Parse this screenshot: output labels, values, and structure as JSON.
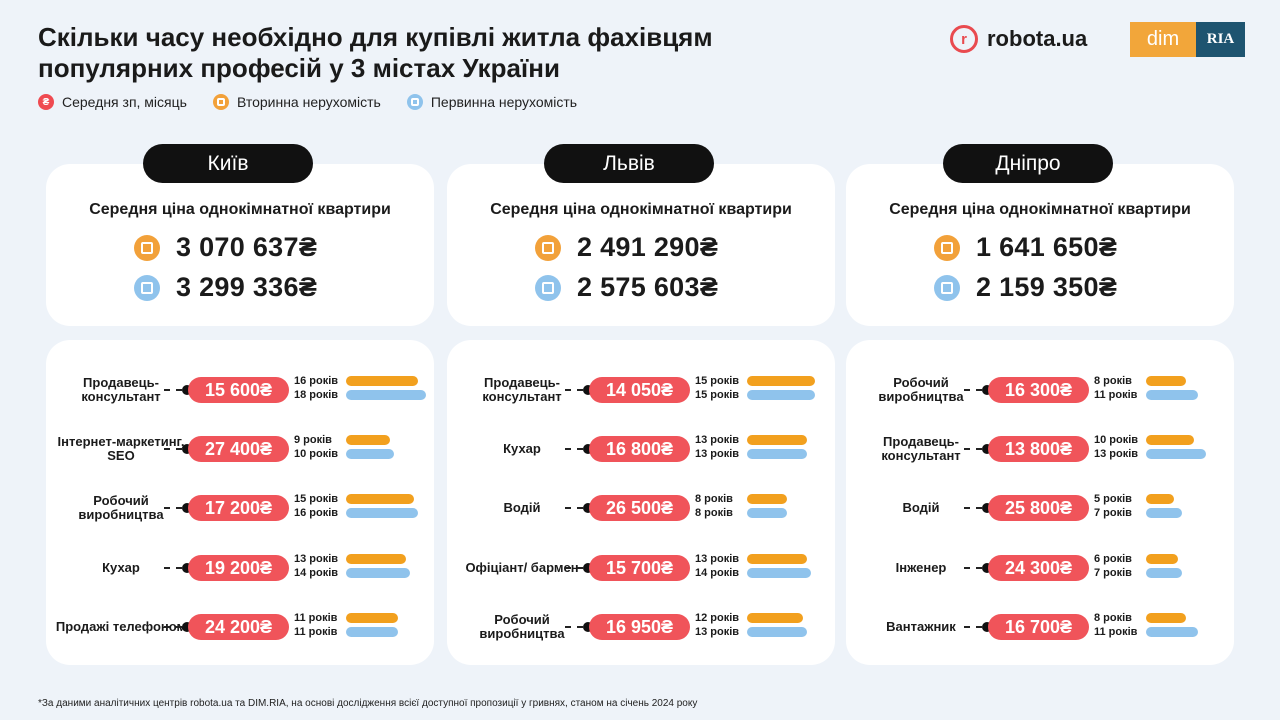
{
  "title_line1": "Скільки часу необхідно для купівлі житла фахівцям",
  "title_line2": "популярних професій у 3 містах України",
  "legend": {
    "salary": "Середня зп, місяць",
    "secondary": "Вторинна нерухомість",
    "primary": "Первинна нерухомість"
  },
  "logos": {
    "robota": "robota.ua",
    "dim": "dim",
    "ria": "RIA"
  },
  "card_subtitle": "Середня ціна однокімнатної квартири",
  "footnote": "*За даними аналітичних центрів  robota.ua та DIM.RIA, на основі дослідження всієї доступної пропозиції у гривнях, станом на січень 2024 року",
  "colors": {
    "salary": "#f0545a",
    "secondary": "#f2a01e",
    "primary": "#8fc3ec"
  },
  "chart_data": {
    "type": "bar",
    "unit_years": "років",
    "cities": [
      {
        "name": "Київ",
        "price_secondary": "3 070 637₴",
        "price_primary": "3 299 336₴",
        "professions": [
          {
            "name": "Продавець-консультант",
            "salary": "15 600₴",
            "years_secondary": 16,
            "years_primary": 18,
            "label_secondary": "16 років",
            "label_primary": "18 років"
          },
          {
            "name": "Інтернет-маркетинг, SEO",
            "salary": "27 400₴",
            "years_secondary": 9,
            "years_primary": 10,
            "label_secondary": "9 років",
            "label_primary": "10 років"
          },
          {
            "name": "Робочий виробництва",
            "salary": "17 200₴",
            "years_secondary": 15,
            "years_primary": 16,
            "label_secondary": "15 років",
            "label_primary": "16 років"
          },
          {
            "name": "Кухар",
            "salary": "19 200₴",
            "years_secondary": 13,
            "years_primary": 14,
            "label_secondary": "13 років",
            "label_primary": "14 років"
          },
          {
            "name": "Продажі телефоном",
            "salary": "24 200₴",
            "years_secondary": 11,
            "years_primary": 11,
            "label_secondary": "11 років",
            "label_primary": "11 років"
          }
        ]
      },
      {
        "name": "Львів",
        "price_secondary": "2 491 290₴",
        "price_primary": "2 575 603₴",
        "professions": [
          {
            "name": "Продавець-консультант",
            "salary": "14 050₴",
            "years_secondary": 15,
            "years_primary": 15,
            "label_secondary": "15 років",
            "label_primary": "15 років"
          },
          {
            "name": "Кухар",
            "salary": "16 800₴",
            "years_secondary": 13,
            "years_primary": 13,
            "label_secondary": "13 років",
            "label_primary": "13 років"
          },
          {
            "name": "Водій",
            "salary": "26 500₴",
            "years_secondary": 8,
            "years_primary": 8,
            "label_secondary": "8 років",
            "label_primary": "8 років"
          },
          {
            "name": "Офіціант/ бармен",
            "salary": "15 700₴",
            "years_secondary": 13,
            "years_primary": 14,
            "label_secondary": "13 років",
            "label_primary": "14 років"
          },
          {
            "name": "Робочий виробництва",
            "salary": "16 950₴",
            "years_secondary": 12,
            "years_primary": 13,
            "label_secondary": "12 років",
            "label_primary": "13 років"
          }
        ]
      },
      {
        "name": "Дніпро",
        "price_secondary": "1 641 650₴",
        "price_primary": "2 159 350₴",
        "professions": [
          {
            "name": "Робочий виробництва",
            "salary": "16 300₴",
            "years_secondary": 8,
            "years_primary": 11,
            "label_secondary": "8 років",
            "label_primary": "11 років"
          },
          {
            "name": "Продавець-консультант",
            "salary": "13 800₴",
            "years_secondary": 10,
            "years_primary": 13,
            "label_secondary": "10 років",
            "label_primary": "13 років"
          },
          {
            "name": "Водій",
            "salary": "25 800₴",
            "years_secondary": 5,
            "years_primary": 7,
            "label_secondary": "5 років",
            "label_primary": "7 років"
          },
          {
            "name": "Інженер",
            "salary": "24 300₴",
            "years_secondary": 6,
            "years_primary": 7,
            "label_secondary": "6 років",
            "label_primary": "7 років"
          },
          {
            "name": "Вантажник",
            "salary": "16 700₴",
            "years_secondary": 8,
            "years_primary": 11,
            "label_secondary": "8 років",
            "label_primary": "11 років"
          }
        ]
      }
    ]
  }
}
